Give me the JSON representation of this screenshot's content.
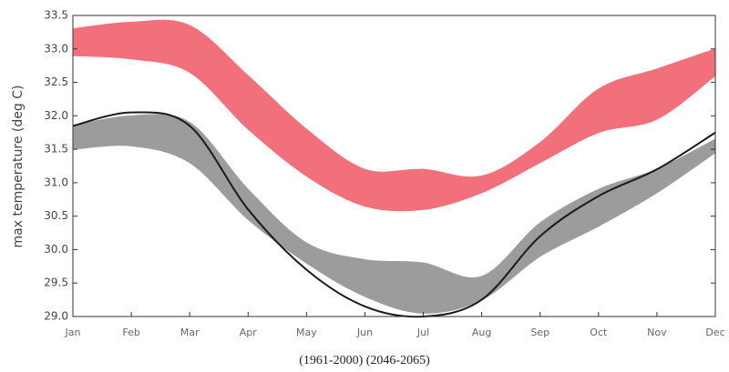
{
  "chart_data": {
    "type": "range_area",
    "y_label": "max temperature (deg C)",
    "categories": [
      "Jan",
      "Feb",
      "Mar",
      "Apr",
      "May",
      "Jun",
      "Jul",
      "Aug",
      "Sep",
      "Oct",
      "Nov",
      "Dec"
    ],
    "ylim": [
      29,
      33.5
    ],
    "yticks": [
      {
        "value": 29,
        "label": "29.0"
      },
      {
        "value": 29.5,
        "label": "29.5"
      },
      {
        "value": 30,
        "label": "30.0"
      },
      {
        "value": 30.5,
        "label": "30.5"
      },
      {
        "value": 31,
        "label": "31.0"
      },
      {
        "value": 31.5,
        "label": "31.5"
      },
      {
        "value": 32,
        "label": "32.0"
      },
      {
        "value": 32.5,
        "label": "32.5"
      },
      {
        "value": 33,
        "label": "33.0"
      },
      {
        "value": 33.5,
        "label": "33.5"
      }
    ],
    "series": [
      {
        "name": "(1961-2000)",
        "color": "#9c9c9c",
        "high": [
          31.85,
          32.0,
          31.9,
          30.9,
          30.1,
          29.85,
          29.8,
          29.6,
          30.4,
          30.9,
          31.2,
          31.65
        ],
        "low": [
          31.5,
          31.55,
          31.3,
          30.45,
          29.8,
          29.3,
          29.05,
          29.25,
          29.9,
          30.35,
          30.85,
          31.45
        ]
      },
      {
        "name": "(2046-2065)",
        "color": "#f2707c",
        "high": [
          33.3,
          33.4,
          33.35,
          32.6,
          31.8,
          31.2,
          31.2,
          31.1,
          31.6,
          32.4,
          32.7,
          33.0
        ],
        "low": [
          32.9,
          32.85,
          32.65,
          31.8,
          31.1,
          30.65,
          30.6,
          30.85,
          31.3,
          31.75,
          31.95,
          32.6
        ]
      }
    ],
    "lines": [
      {
        "color": "#1a1a1a",
        "values": [
          31.85,
          32.05,
          31.85,
          30.6,
          29.7,
          29.15,
          29.0,
          29.25,
          30.2,
          30.8,
          31.2,
          31.75
        ]
      }
    ]
  }
}
